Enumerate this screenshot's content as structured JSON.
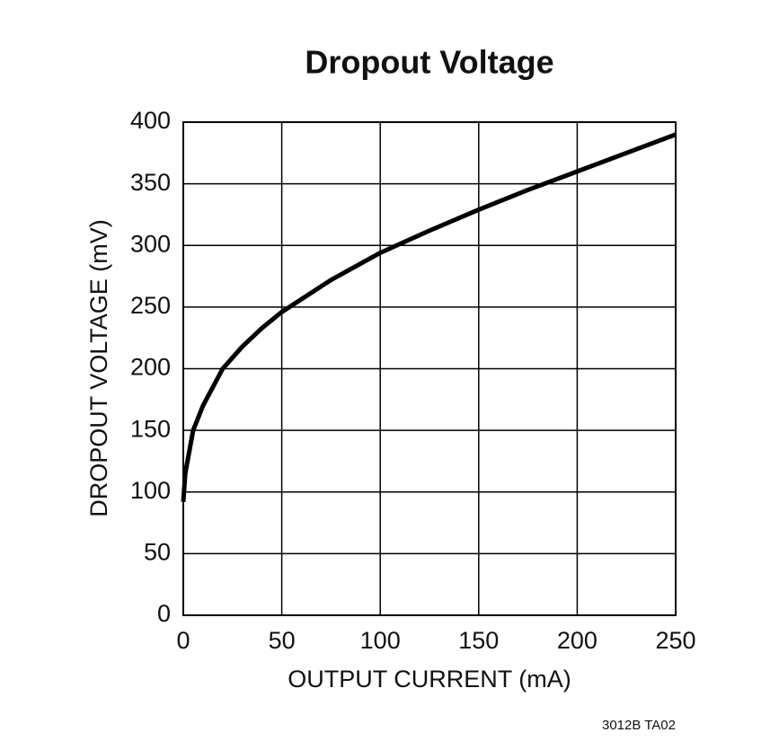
{
  "chart_data": {
    "type": "line",
    "title": "Dropout Voltage",
    "x_label": "OUTPUT CURRENT (mA)",
    "y_label": "DROPOUT VOLTAGE (mV)",
    "annotation": "3012B TA02",
    "x": [
      0,
      1,
      5,
      10,
      20,
      30,
      40,
      50,
      75,
      100,
      125,
      150,
      175,
      200,
      225,
      250
    ],
    "series": [
      {
        "name": "Dropout",
        "color": "#000000",
        "values": [
          92,
          115,
          150,
          170,
          200,
          218,
          233,
          246,
          272,
          294,
          312,
          329,
          345,
          360,
          375,
          390
        ]
      }
    ],
    "xlim": [
      0,
      250
    ],
    "xticks": [
      0,
      50,
      100,
      150,
      200,
      250
    ],
    "ylim": [
      0,
      400
    ],
    "yticks": [
      0,
      50,
      100,
      150,
      200,
      250,
      300,
      350,
      400
    ],
    "grid": true
  }
}
